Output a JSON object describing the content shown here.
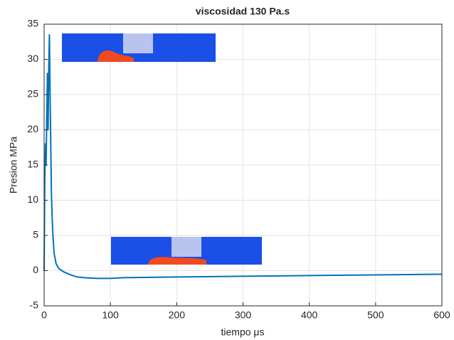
{
  "chart_data": {
    "type": "line",
    "title": "viscosidad 130 Pa.s",
    "x_label": "tiempo μs",
    "y_label": "Presion MPa",
    "x": [
      0,
      1,
      2,
      3,
      4,
      5,
      6,
      7,
      8,
      9,
      10,
      11,
      12,
      13,
      15,
      18,
      22,
      30,
      40,
      50,
      60,
      80,
      100,
      120,
      200,
      300,
      400,
      500,
      600
    ],
    "series": [
      {
        "name": "Presion",
        "color": "#0072bd",
        "values": [
          0,
          13,
          18,
          15,
          22,
          28,
          20,
          29,
          33.5,
          25,
          18,
          11,
          8,
          5.5,
          2.5,
          1,
          0.3,
          -0.2,
          -0.6,
          -0.9,
          -1,
          -1.1,
          -1.1,
          -1,
          -0.9,
          -0.8,
          -0.7,
          -0.6,
          -0.5
        ]
      }
    ],
    "xlim": [
      0,
      600
    ],
    "xticks": [
      0,
      100,
      200,
      300,
      400,
      500,
      600
    ],
    "ylim": [
      -5,
      35
    ],
    "yticks": [
      -5,
      0,
      5,
      10,
      15,
      20,
      25,
      30,
      35
    ],
    "grid": true
  }
}
